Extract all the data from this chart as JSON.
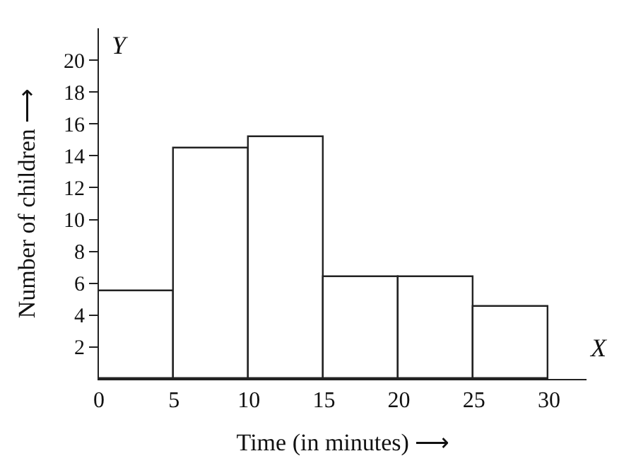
{
  "chart_data": {
    "type": "histogram",
    "xlabel": "Time (in minutes) ⟶",
    "ylabel": "Number of children ⟶",
    "bins": [
      0,
      5,
      10,
      15,
      20,
      25,
      30
    ],
    "values": [
      5.5,
      14.5,
      15.2,
      6.4,
      6.4,
      4.5
    ],
    "color": "#ffffff",
    "xlim": [
      0,
      32.5
    ],
    "xticks": [
      0,
      5,
      10,
      15,
      20,
      25,
      30
    ],
    "ylim": [
      0,
      22
    ],
    "yticks": [
      2,
      4,
      6,
      8,
      10,
      12,
      14,
      16,
      18,
      20
    ],
    "annotations": [
      "X",
      "Y"
    ]
  }
}
